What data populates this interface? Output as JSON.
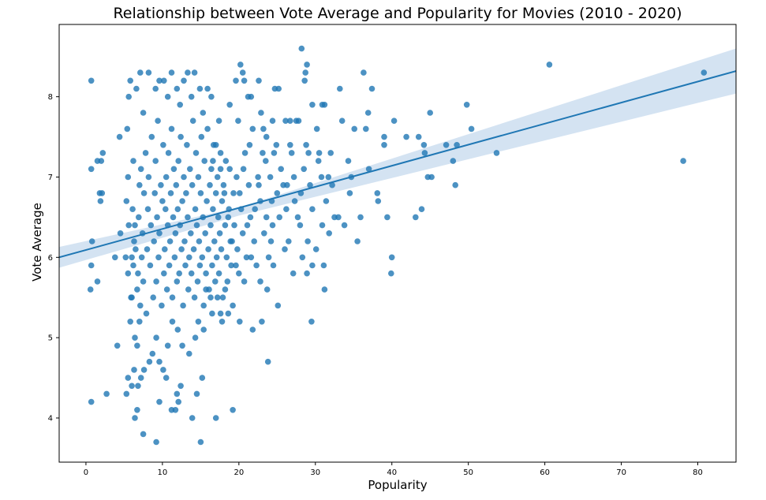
{
  "chart_data": {
    "type": "scatter",
    "title": "Relationship between Vote Average and Popularity for Movies (2010 - 2020)",
    "xlabel": "Popularity",
    "ylabel": "Vote Average",
    "xlim": [
      -3.5,
      85
    ],
    "ylim": [
      3.45,
      8.9
    ],
    "xticks": [
      0,
      10,
      20,
      30,
      40,
      50,
      60,
      70,
      80
    ],
    "yticks": [
      4,
      5,
      6,
      7,
      8
    ],
    "grid": false,
    "legend": "none",
    "point_color": "#1f77b4",
    "line_color": "#1f77b4",
    "band_color": "#c5d9ee",
    "regression": {
      "x": [
        -3.5,
        85
      ],
      "y": [
        6.0,
        8.32
      ]
    },
    "confidence_band": {
      "x": [
        -3.5,
        20,
        85
      ],
      "upper": [
        6.13,
        6.62,
        8.6
      ],
      "lower": [
        5.87,
        6.52,
        8.04
      ]
    },
    "points": [
      [
        0.7,
        8.2
      ],
      [
        0.7,
        7.1
      ],
      [
        0.8,
        6.2
      ],
      [
        0.7,
        5.9
      ],
      [
        0.6,
        5.6
      ],
      [
        0.7,
        4.2
      ],
      [
        1.5,
        5.7
      ],
      [
        1.5,
        7.2
      ],
      [
        2,
        7.2
      ],
      [
        2.2,
        7.3
      ],
      [
        1.8,
        6.8
      ],
      [
        2.1,
        6.8
      ],
      [
        1.9,
        6.7
      ],
      [
        2.7,
        4.3
      ],
      [
        3.8,
        6.0
      ],
      [
        4.1,
        4.9
      ],
      [
        4.5,
        6.3
      ],
      [
        4.4,
        7.5
      ],
      [
        5.3,
        4.3
      ],
      [
        5.5,
        4.5
      ],
      [
        6,
        4.4
      ],
      [
        6.4,
        4.0
      ],
      [
        6.7,
        4.1
      ],
      [
        7.5,
        3.8
      ],
      [
        9.2,
        3.7
      ],
      [
        15,
        3.7
      ],
      [
        13.9,
        4.0
      ],
      [
        17,
        4.0
      ],
      [
        19.2,
        4.1
      ],
      [
        11.2,
        4.1
      ],
      [
        11.7,
        4.1
      ],
      [
        12.1,
        4.2
      ],
      [
        9.6,
        4.2
      ],
      [
        10.5,
        4.5
      ],
      [
        12.4,
        4.4
      ],
      [
        15.2,
        4.5
      ],
      [
        11.9,
        4.3
      ],
      [
        14.5,
        4.3
      ],
      [
        23.8,
        4.7
      ],
      [
        29.5,
        5.2
      ],
      [
        20.1,
        5.2
      ],
      [
        25.1,
        5.4
      ],
      [
        27.1,
        5.8
      ],
      [
        28.9,
        5.8
      ],
      [
        31.2,
        5.6
      ],
      [
        31.1,
        5.9
      ],
      [
        33,
        6.5
      ],
      [
        35.5,
        6.2
      ],
      [
        35.9,
        6.5
      ],
      [
        36.6,
        7.6
      ],
      [
        37,
        7.1
      ],
      [
        38.1,
        6.8
      ],
      [
        38.2,
        6.7
      ],
      [
        39.4,
        6.5
      ],
      [
        39.9,
        5.8
      ],
      [
        40,
        6.0
      ],
      [
        39,
        7.4
      ],
      [
        39,
        7.5
      ],
      [
        40.3,
        7.7
      ],
      [
        41.9,
        7.5
      ],
      [
        43.1,
        6.5
      ],
      [
        43.5,
        7.5
      ],
      [
        43.9,
        6.6
      ],
      [
        44.2,
        7.4
      ],
      [
        44.3,
        7.3
      ],
      [
        44.7,
        7.0
      ],
      [
        45.2,
        7.0
      ],
      [
        45,
        7.8
      ],
      [
        47.1,
        7.4
      ],
      [
        48,
        7.2
      ],
      [
        48.5,
        7.4
      ],
      [
        48.3,
        6.9
      ],
      [
        49.8,
        7.9
      ],
      [
        50.4,
        7.6
      ],
      [
        53.7,
        7.3
      ],
      [
        60.6,
        8.4
      ],
      [
        78.1,
        7.2
      ],
      [
        80.8,
        8.3
      ],
      [
        36.3,
        8.3
      ],
      [
        36.9,
        7.8
      ],
      [
        37.4,
        8.1
      ],
      [
        35.1,
        7.6
      ],
      [
        33.5,
        7.7
      ],
      [
        33.2,
        8.1
      ],
      [
        31.2,
        7.9
      ],
      [
        30.9,
        7.9
      ],
      [
        29.6,
        7.9
      ],
      [
        30.2,
        7.6
      ],
      [
        30.5,
        7.3
      ],
      [
        28.8,
        7.4
      ],
      [
        29.1,
        7.3
      ],
      [
        28.7,
        8.3
      ],
      [
        28.2,
        8.6
      ],
      [
        28.6,
        8.2
      ],
      [
        28.9,
        8.4
      ],
      [
        27.5,
        7.7
      ],
      [
        27.8,
        7.7
      ],
      [
        26.7,
        7.7
      ],
      [
        26.1,
        7.7
      ],
      [
        25.2,
        8.1
      ],
      [
        24.7,
        8.1
      ],
      [
        24.4,
        7.7
      ],
      [
        23.6,
        7.5
      ],
      [
        23.2,
        7.6
      ],
      [
        22.6,
        8.2
      ],
      [
        21.6,
        8.0
      ],
      [
        21.2,
        8.0
      ],
      [
        20.7,
        8.2
      ],
      [
        20.2,
        8.4
      ],
      [
        20.5,
        8.3
      ],
      [
        19.6,
        8.2
      ],
      [
        32.2,
        6.9
      ],
      [
        32.5,
        6.5
      ],
      [
        33.8,
        6.4
      ],
      [
        34.5,
        6.8
      ],
      [
        34.7,
        7.0
      ],
      [
        34.3,
        7.2
      ],
      [
        32,
        7.3
      ],
      [
        31.7,
        7.0
      ],
      [
        30.8,
        7.0
      ],
      [
        30.9,
        6.4
      ],
      [
        29.6,
        6.6
      ],
      [
        29,
        6.2
      ],
      [
        29.6,
        5.9
      ],
      [
        28.3,
        6.0
      ],
      [
        27.7,
        6.5
      ],
      [
        26.5,
        6.2
      ],
      [
        26.2,
        6.6
      ],
      [
        25.8,
        6.9
      ],
      [
        25,
        6.8
      ],
      [
        24.4,
        6.4
      ],
      [
        24.2,
        6.2
      ],
      [
        24.5,
        5.9
      ],
      [
        23.7,
        5.6
      ],
      [
        23,
        5.2
      ],
      [
        22.8,
        5.7
      ],
      [
        21.8,
        5.1
      ],
      [
        20.7,
        5.7
      ],
      [
        19.2,
        5.4
      ],
      [
        18.2,
        5.6
      ],
      [
        17.8,
        5.2
      ],
      [
        17.6,
        5.3
      ],
      [
        17.2,
        5.5
      ],
      [
        18.6,
        5.3
      ],
      [
        16.5,
        5.3
      ],
      [
        16.3,
        5.5
      ],
      [
        15.7,
        5.6
      ],
      [
        15.4,
        5.1
      ],
      [
        14.7,
        5.2
      ],
      [
        14.3,
        5.0
      ],
      [
        13.5,
        4.8
      ],
      [
        12.6,
        4.9
      ],
      [
        12,
        5.1
      ],
      [
        11.3,
        5.2
      ],
      [
        10.7,
        4.9
      ],
      [
        10.1,
        4.6
      ],
      [
        9.6,
        4.7
      ],
      [
        9.2,
        5.0
      ],
      [
        8.7,
        4.8
      ],
      [
        8.3,
        4.7
      ],
      [
        7.6,
        4.6
      ],
      [
        7.2,
        4.5
      ],
      [
        6.8,
        4.4
      ],
      [
        6.3,
        4.6
      ],
      [
        6.7,
        4.9
      ],
      [
        7,
        5.2
      ],
      [
        6,
        5.5
      ],
      [
        6.4,
        5.0
      ],
      [
        5.8,
        5.2
      ],
      [
        5.5,
        5.8
      ],
      [
        5.2,
        6.0
      ],
      [
        5.6,
        6.4
      ],
      [
        5.3,
        6.7
      ],
      [
        5.5,
        7.0
      ],
      [
        5.4,
        7.6
      ],
      [
        5.6,
        8.0
      ],
      [
        5.8,
        8.2
      ],
      [
        6.2,
        7.2
      ],
      [
        6.6,
        8.1
      ],
      [
        7.1,
        8.3
      ],
      [
        7.5,
        7.8
      ],
      [
        8.2,
        8.3
      ],
      [
        9.1,
        8.1
      ],
      [
        9.6,
        8.2
      ],
      [
        10.2,
        8.2
      ],
      [
        10.7,
        8.0
      ],
      [
        11.2,
        8.3
      ],
      [
        11.9,
        8.1
      ],
      [
        12.3,
        7.9
      ],
      [
        12.8,
        8.2
      ],
      [
        13.3,
        8.3
      ],
      [
        13.8,
        8.0
      ],
      [
        14.2,
        8.3
      ],
      [
        14.9,
        8.1
      ],
      [
        15.3,
        7.8
      ],
      [
        15.9,
        8.1
      ],
      [
        16.4,
        8.0
      ],
      [
        17,
        7.4
      ],
      [
        17.6,
        7.1
      ],
      [
        18.1,
        6.8
      ],
      [
        18.6,
        6.5
      ],
      [
        19.1,
        6.2
      ],
      [
        19.6,
        5.9
      ],
      [
        20.1,
        6.8
      ],
      [
        20.6,
        7.1
      ],
      [
        21.1,
        6.4
      ],
      [
        21.6,
        6.0
      ],
      [
        22.1,
        6.6
      ],
      [
        22.6,
        6.9
      ],
      [
        23.1,
        7.3
      ],
      [
        23.6,
        6.5
      ],
      [
        24.1,
        7.0
      ],
      [
        26.9,
        7.3
      ],
      [
        27.2,
        7.0
      ],
      [
        28.1,
        6.8
      ],
      [
        30.1,
        6.1
      ],
      [
        31.4,
        6.7
      ],
      [
        26,
        6.1
      ],
      [
        24.9,
        7.4
      ],
      [
        22.9,
        7.8
      ],
      [
        21.4,
        7.4
      ],
      [
        19.9,
        7.7
      ],
      [
        18.8,
        7.9
      ],
      [
        17.4,
        7.7
      ],
      [
        16.6,
        7.2
      ],
      [
        5.9,
        5.5
      ],
      [
        6,
        6.0
      ],
      [
        6.2,
        5.9
      ],
      [
        6.3,
        6.2
      ],
      [
        6.1,
        6.6
      ],
      [
        6.4,
        6.4
      ],
      [
        6.5,
        6.1
      ],
      [
        6.7,
        5.6
      ],
      [
        6.8,
        5.8
      ],
      [
        6.9,
        6.5
      ],
      [
        7,
        6.9
      ],
      [
        7.2,
        7.1
      ],
      [
        7.1,
        5.4
      ],
      [
        7.3,
        6.0
      ],
      [
        7.4,
        6.3
      ],
      [
        7.5,
        5.7
      ],
      [
        7.6,
        6.8
      ],
      [
        7.8,
        7.3
      ],
      [
        7.9,
        5.3
      ],
      [
        8,
        6.1
      ],
      [
        8.1,
        6.6
      ],
      [
        8.2,
        7.0
      ],
      [
        8.4,
        5.9
      ],
      [
        8.5,
        6.4
      ],
      [
        8.6,
        7.5
      ],
      [
        8.8,
        5.5
      ],
      [
        8.9,
        6.2
      ],
      [
        9,
        6.8
      ],
      [
        9.1,
        7.2
      ],
      [
        9.2,
        5.7
      ],
      [
        9.3,
        6.5
      ],
      [
        9.4,
        7.7
      ],
      [
        9.5,
        6.0
      ],
      [
        9.6,
        6.3
      ],
      [
        9.8,
        6.9
      ],
      [
        9.9,
        5.4
      ],
      [
        10,
        6.7
      ],
      [
        10.1,
        7.4
      ],
      [
        10.2,
        5.8
      ],
      [
        10.3,
        6.1
      ],
      [
        10.4,
        6.6
      ],
      [
        10.5,
        7.0
      ],
      [
        10.6,
        5.6
      ],
      [
        10.7,
        6.4
      ],
      [
        10.8,
        7.3
      ],
      [
        10.9,
        5.9
      ],
      [
        11,
        6.2
      ],
      [
        11.1,
        6.8
      ],
      [
        11.2,
        7.6
      ],
      [
        11.3,
        5.5
      ],
      [
        11.4,
        6.5
      ],
      [
        11.5,
        7.1
      ],
      [
        11.6,
        6.0
      ],
      [
        11.7,
        6.3
      ],
      [
        11.8,
        6.9
      ],
      [
        11.9,
        5.7
      ],
      [
        12,
        6.6
      ],
      [
        12.1,
        7.2
      ],
      [
        12.2,
        5.8
      ],
      [
        12.3,
        6.4
      ],
      [
        12.4,
        7.5
      ],
      [
        12.5,
        6.1
      ],
      [
        12.6,
        6.7
      ],
      [
        12.7,
        5.4
      ],
      [
        12.8,
        7.0
      ],
      [
        12.9,
        6.2
      ],
      [
        13,
        5.9
      ],
      [
        13.1,
        6.8
      ],
      [
        13.2,
        7.4
      ],
      [
        13.3,
        6.5
      ],
      [
        13.4,
        5.6
      ],
      [
        13.5,
        6.0
      ],
      [
        13.6,
        7.1
      ],
      [
        13.7,
        6.3
      ],
      [
        13.8,
        5.8
      ],
      [
        13.9,
        6.9
      ],
      [
        14,
        7.7
      ],
      [
        14.1,
        6.1
      ],
      [
        14.2,
        5.5
      ],
      [
        14.3,
        6.6
      ],
      [
        14.4,
        7.3
      ],
      [
        14.5,
        6.4
      ],
      [
        14.6,
        5.7
      ],
      [
        14.7,
        7.0
      ],
      [
        14.8,
        6.2
      ],
      [
        14.9,
        5.9
      ],
      [
        15,
        6.8
      ],
      [
        15.1,
        7.5
      ],
      [
        15.2,
        6.0
      ],
      [
        15.3,
        6.5
      ],
      [
        15.4,
        5.4
      ],
      [
        15.5,
        7.2
      ],
      [
        15.6,
        6.3
      ],
      [
        15.7,
        5.8
      ],
      [
        15.8,
        6.7
      ],
      [
        15.9,
        7.6
      ],
      [
        16,
        6.1
      ],
      [
        16.1,
        5.6
      ],
      [
        16.2,
        6.9
      ],
      [
        16.3,
        6.4
      ],
      [
        16.4,
        7.1
      ],
      [
        16.5,
        5.9
      ],
      [
        16.6,
        6.6
      ],
      [
        16.7,
        7.4
      ],
      [
        16.8,
        6.2
      ],
      [
        16.9,
        5.7
      ],
      [
        17,
        6.8
      ],
      [
        17.1,
        6.0
      ],
      [
        17.2,
        7.0
      ],
      [
        17.3,
        6.5
      ],
      [
        17.4,
        5.8
      ],
      [
        17.5,
        6.3
      ],
      [
        17.6,
        7.3
      ],
      [
        17.7,
        6.1
      ],
      [
        17.8,
        6.7
      ],
      [
        17.9,
        5.5
      ],
      [
        18,
        6.9
      ],
      [
        18.2,
        6.4
      ],
      [
        18.3,
        7.2
      ],
      [
        18.4,
        6.0
      ],
      [
        18.5,
        5.7
      ],
      [
        18.7,
        6.6
      ],
      [
        18.8,
        7.1
      ],
      [
        18.9,
        6.2
      ],
      [
        19,
        5.9
      ],
      [
        19.3,
        6.8
      ],
      [
        19.4,
        6.4
      ],
      [
        19.7,
        7.0
      ],
      [
        19.8,
        6.1
      ],
      [
        20,
        5.8
      ],
      [
        20.3,
        6.6
      ],
      [
        20.5,
        6.3
      ],
      [
        20.8,
        7.3
      ],
      [
        21,
        6.0
      ],
      [
        21.3,
        6.9
      ],
      [
        21.5,
        6.5
      ],
      [
        21.8,
        7.6
      ],
      [
        22,
        6.2
      ],
      [
        22.3,
        5.9
      ],
      [
        22.5,
        7.0
      ],
      [
        22.8,
        6.7
      ],
      [
        23.3,
        6.3
      ],
      [
        23.5,
        7.2
      ],
      [
        23.9,
        6.0
      ],
      [
        24.3,
        6.7
      ],
      [
        24.6,
        7.3
      ],
      [
        25.3,
        6.5
      ],
      [
        25.5,
        7.1
      ],
      [
        26.3,
        6.9
      ],
      [
        26.7,
        7.4
      ],
      [
        27.3,
        6.7
      ],
      [
        28,
        6.4
      ],
      [
        28.5,
        7.1
      ],
      [
        29.3,
        6.9
      ],
      [
        30.4,
        7.2
      ],
      [
        31.8,
        6.3
      ]
    ]
  }
}
